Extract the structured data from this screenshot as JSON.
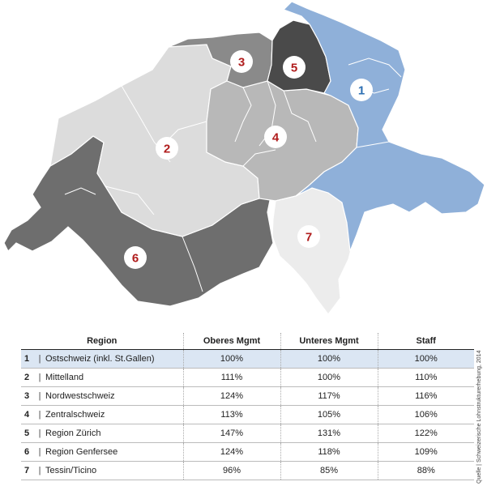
{
  "map": {
    "regions": [
      {
        "id": "1",
        "color": "#8fb0d9"
      },
      {
        "id": "2",
        "color": "#dcdcdc"
      },
      {
        "id": "3",
        "color": "#8a8a8a"
      },
      {
        "id": "4",
        "color": "#b8b8b8"
      },
      {
        "id": "5",
        "color": "#4a4a4a"
      },
      {
        "id": "6",
        "color": "#6e6e6e"
      },
      {
        "id": "7",
        "color": "#ececec"
      }
    ],
    "label_colors": {
      "1": "#2c6fb3",
      "other": "#b01c1c"
    }
  },
  "table": {
    "headers": [
      "Region",
      "Oberes Mgmt",
      "Unteres Mgmt",
      "Staff"
    ],
    "rows": [
      {
        "num": "1",
        "name": "Ostschweiz (inkl. St.Gallen)",
        "oberes": "100%",
        "unteres": "100%",
        "staff": "100%"
      },
      {
        "num": "2",
        "name": "Mittelland",
        "oberes": "111%",
        "unteres": "100%",
        "staff": "110%"
      },
      {
        "num": "3",
        "name": "Nordwestschweiz",
        "oberes": "124%",
        "unteres": "117%",
        "staff": "116%"
      },
      {
        "num": "4",
        "name": "Zentralschweiz",
        "oberes": "113%",
        "unteres": "105%",
        "staff": "106%"
      },
      {
        "num": "5",
        "name": "Region Zürich",
        "oberes": "147%",
        "unteres": "131%",
        "staff": "122%"
      },
      {
        "num": "6",
        "name": "Region Genfersee",
        "oberes": "124%",
        "unteres": "118%",
        "staff": "109%"
      },
      {
        "num": "7",
        "name": "Tessin/Ticino",
        "oberes": "96%",
        "unteres": "85%",
        "staff": "88%"
      }
    ],
    "separator": "|",
    "highlight_color": "#dbe6f3"
  },
  "source": "Quelle | Schweizerische Lohnstrukturerhebung, 2014"
}
